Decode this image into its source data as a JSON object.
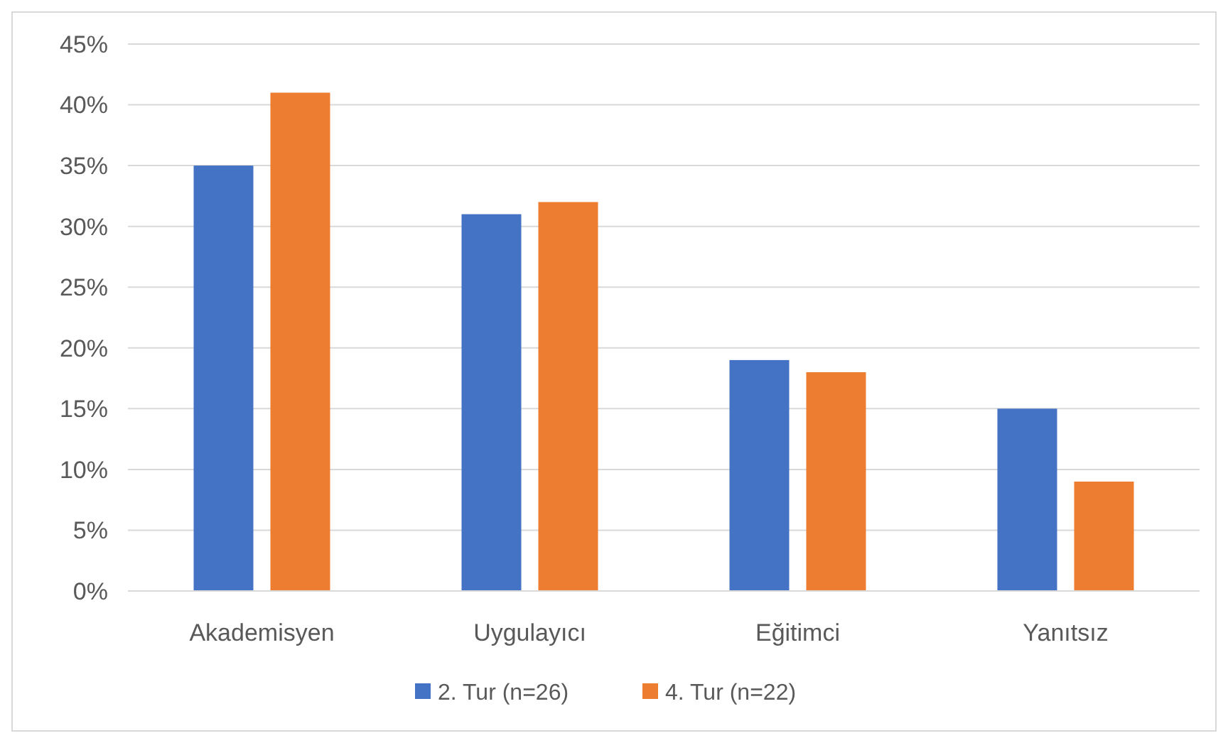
{
  "chart_data": {
    "type": "bar",
    "categories": [
      "Akademisyen",
      "Uygulayıcı",
      "Eğitimci",
      "Yanıtsız"
    ],
    "series": [
      {
        "name": "2. Tur (n=26)",
        "color": "#4472c4",
        "values": [
          35,
          31,
          19,
          15
        ]
      },
      {
        "name": "4. Tur (n=22)",
        "color": "#ed7d31",
        "values": [
          41,
          32,
          18,
          9
        ]
      }
    ],
    "ylim": [
      0,
      45
    ],
    "yticks": [
      {
        "value": 0,
        "label": "0%"
      },
      {
        "value": 5,
        "label": "5%"
      },
      {
        "value": 10,
        "label": "10%"
      },
      {
        "value": 15,
        "label": "15%"
      },
      {
        "value": 20,
        "label": "20%"
      },
      {
        "value": 25,
        "label": "25%"
      },
      {
        "value": 30,
        "label": "30%"
      },
      {
        "value": 35,
        "label": "35%"
      },
      {
        "value": 40,
        "label": "40%"
      },
      {
        "value": 45,
        "label": "45%"
      }
    ],
    "grid": "y",
    "legend": "bottom"
  }
}
